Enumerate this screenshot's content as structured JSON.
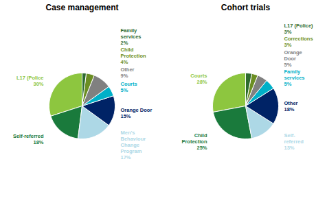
{
  "chart_data": [
    {
      "type": "pie",
      "title": "Case management",
      "categories": [
        "L17 (Police",
        "Self-referred",
        "Men's\nBehaviour\nChange\nProgram",
        "Orange Door",
        "Courts",
        "Other",
        "Child\nProtection",
        "Family\nservices"
      ],
      "values": [
        30,
        18,
        17,
        15,
        5,
        9,
        4,
        2
      ],
      "value_labels": [
        "30%",
        "18%",
        "17%",
        "15%",
        "5%",
        "9%",
        "4%",
        "2%"
      ],
      "colors": [
        "#8dc63f",
        "#1a7a3c",
        "#add8e6",
        "#002366",
        "#00b0c8",
        "#808080",
        "#6b8e23",
        "#2e6b2e"
      ],
      "data_labels": true
    },
    {
      "type": "pie",
      "title": "Cohort trials",
      "categories": [
        "Courts",
        "Child\nProtection",
        "Self-\nreferred",
        "Other",
        "Family\nservices",
        "Orange\nDoor",
        "Corrections",
        "L17 (Police)"
      ],
      "values": [
        28,
        25,
        13,
        18,
        5,
        5,
        3,
        3
      ],
      "value_labels": [
        "28%",
        "25%",
        "13%",
        "18%",
        "5%",
        "5%",
        "3%",
        "3%"
      ],
      "colors": [
        "#8dc63f",
        "#1a7a3c",
        "#add8e6",
        "#002366",
        "#00b0c8",
        "#808080",
        "#6b8e23",
        "#2e6b2e"
      ],
      "data_labels": true
    }
  ]
}
